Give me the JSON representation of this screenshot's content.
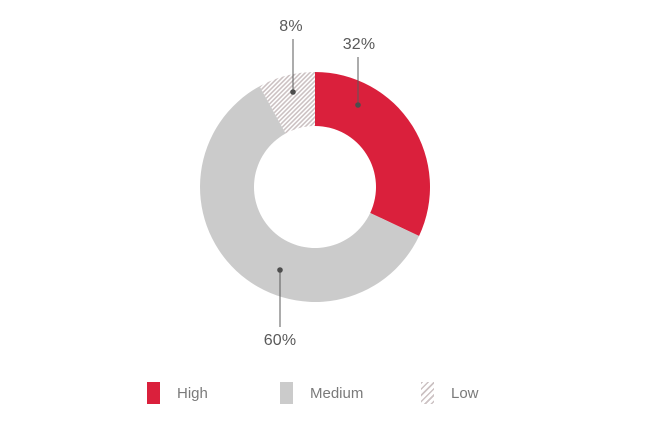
{
  "chart_data": {
    "type": "donut",
    "title": "",
    "unit": "%",
    "order": "clockwise-from-top",
    "segments": [
      {
        "name": "High",
        "value": 32,
        "label": "32%",
        "color": "#da203c",
        "fill": "solid"
      },
      {
        "name": "Medium",
        "value": 60,
        "label": "60%",
        "color": "#cbcbcb",
        "fill": "solid"
      },
      {
        "name": "Low",
        "value": 8,
        "label": "8%",
        "color": "#ccc2c3",
        "fill": "hatch"
      }
    ],
    "legend_position": "bottom",
    "background": "#ffffff",
    "callout_text_color": "#595959",
    "legend_text_color": "#7a7a7a",
    "leader_line_color": "#5a5a5a"
  }
}
